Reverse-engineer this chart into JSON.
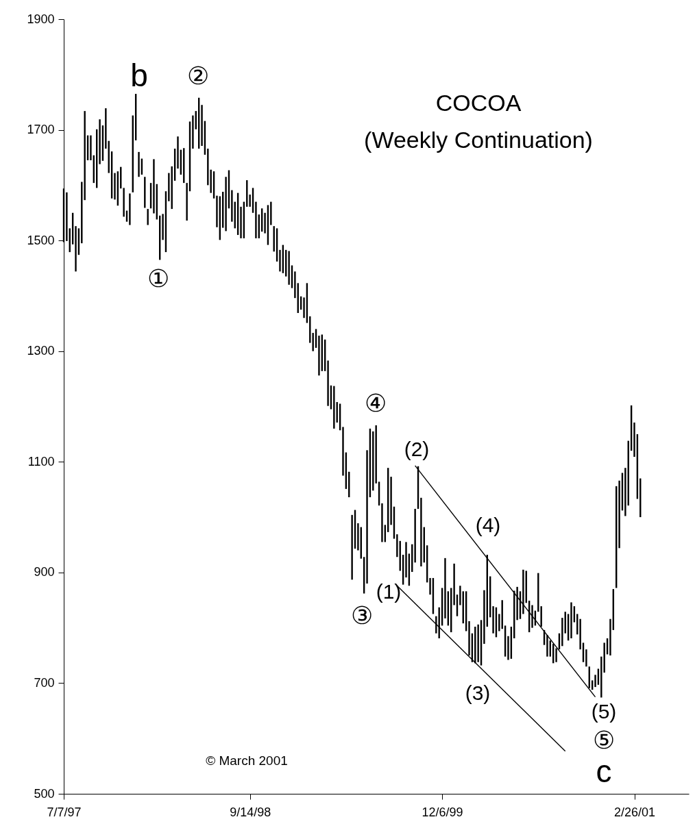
{
  "chart_data": {
    "type": "bar",
    "title": "COCOA",
    "subtitle": "(Weekly Continuation)",
    "x": [
      "1997-07-07",
      "1997-07-14",
      "1997-07-21",
      "1997-07-28",
      "1997-08-04",
      "1997-08-11",
      "1997-08-18",
      "1997-08-25",
      "1997-09-01",
      "1997-09-08",
      "1997-09-15",
      "1997-09-22",
      "1997-09-29",
      "1997-10-06",
      "1997-10-13",
      "1997-10-20",
      "1997-10-27",
      "1997-11-03",
      "1997-11-10",
      "1997-11-17",
      "1997-11-24",
      "1997-12-01",
      "1997-12-08",
      "1997-12-15",
      "1997-12-22",
      "1997-12-29",
      "1998-01-05",
      "1998-01-12",
      "1998-01-19",
      "1998-01-26",
      "1998-02-02",
      "1998-02-09",
      "1998-02-16",
      "1998-02-23",
      "1998-03-02",
      "1998-03-09",
      "1998-03-16",
      "1998-03-23",
      "1998-03-30",
      "1998-04-06",
      "1998-04-13",
      "1998-04-20",
      "1998-04-27",
      "1998-05-04",
      "1998-05-11",
      "1998-05-18",
      "1998-05-25",
      "1998-06-01",
      "1998-06-08",
      "1998-06-15",
      "1998-06-22",
      "1998-06-29",
      "1998-07-06",
      "1998-07-13",
      "1998-07-20",
      "1998-07-27",
      "1998-08-03",
      "1998-08-10",
      "1998-08-17",
      "1998-08-24",
      "1998-08-31",
      "1998-09-07",
      "1998-09-14",
      "1998-09-21",
      "1998-09-28",
      "1998-10-05",
      "1998-10-12",
      "1998-10-19",
      "1998-10-26",
      "1998-11-02",
      "1998-11-09",
      "1998-11-16",
      "1998-11-23",
      "1998-11-30",
      "1998-12-07",
      "1998-12-14",
      "1998-12-21",
      "1998-12-28",
      "1999-01-04",
      "1999-01-11",
      "1999-01-18",
      "1999-01-25",
      "1999-02-01",
      "1999-02-08",
      "1999-02-15",
      "1999-02-22",
      "1999-03-01",
      "1999-03-08",
      "1999-03-15",
      "1999-03-22",
      "1999-03-29",
      "1999-04-05",
      "1999-04-12",
      "1999-04-19",
      "1999-04-26",
      "1999-05-03",
      "1999-05-10",
      "1999-05-17",
      "1999-05-24",
      "1999-05-31",
      "1999-06-07",
      "1999-06-14",
      "1999-06-21",
      "1999-06-28",
      "1999-07-05",
      "1999-07-12",
      "1999-07-19",
      "1999-07-26",
      "1999-08-02",
      "1999-08-09",
      "1999-08-16",
      "1999-08-23",
      "1999-08-30",
      "1999-09-06",
      "1999-09-13",
      "1999-09-20",
      "1999-09-27",
      "1999-10-04",
      "1999-10-11",
      "1999-10-18",
      "1999-10-25",
      "1999-11-01",
      "1999-11-08",
      "1999-11-15",
      "1999-11-22",
      "1999-11-29",
      "1999-12-06",
      "1999-12-13",
      "1999-12-20",
      "1999-12-27",
      "2000-01-03",
      "2000-01-10",
      "2000-01-17",
      "2000-01-24",
      "2000-01-31",
      "2000-02-07",
      "2000-02-14",
      "2000-02-21",
      "2000-02-28",
      "2000-03-06",
      "2000-03-13",
      "2000-03-20",
      "2000-03-27",
      "2000-04-03",
      "2000-04-10",
      "2000-04-17",
      "2000-04-24",
      "2000-05-01",
      "2000-05-08",
      "2000-05-15",
      "2000-05-22",
      "2000-05-29",
      "2000-06-05",
      "2000-06-12",
      "2000-06-19",
      "2000-06-26",
      "2000-07-03",
      "2000-07-10",
      "2000-07-17",
      "2000-07-24",
      "2000-07-31",
      "2000-08-07",
      "2000-08-14",
      "2000-08-21",
      "2000-08-28",
      "2000-09-04",
      "2000-09-11",
      "2000-09-18",
      "2000-09-25",
      "2000-10-02",
      "2000-10-09",
      "2000-10-16",
      "2000-10-23",
      "2000-10-30",
      "2000-11-06",
      "2000-11-13",
      "2000-11-20",
      "2000-11-27",
      "2000-12-04",
      "2000-12-11",
      "2000-12-18",
      "2000-12-25",
      "2001-01-01",
      "2001-01-08",
      "2001-01-15",
      "2001-01-22",
      "2001-01-29",
      "2001-02-05",
      "2001-02-12",
      "2001-02-19",
      "2001-02-26",
      "2001-03-05",
      "2001-03-12"
    ],
    "series": [
      {
        "color": "#000000",
        "base": [
          1497,
          1499,
          1479,
          1493,
          1444,
          1474,
          1495,
          1573,
          1645,
          1645,
          1604,
          1595,
          1638,
          1644,
          1666,
          1622,
          1576,
          1574,
          1563,
          1594,
          1543,
          1534,
          1528,
          1587,
          1681,
          1615,
          1619,
          1559,
          1528,
          1558,
          1549,
          1538,
          1465,
          1501,
          1479,
          1571,
          1557,
          1608,
          1630,
          1619,
          1604,
          1536,
          1589,
          1666,
          1701,
          1666,
          1671,
          1655,
          1600,
          1586,
          1576,
          1524,
          1501,
          1523,
          1517,
          1558,
          1534,
          1522,
          1510,
          1504,
          1504,
          1561,
          1561,
          1550,
          1504,
          1504,
          1516,
          1513,
          1492,
          1528,
          1480,
          1462,
          1444,
          1441,
          1435,
          1420,
          1414,
          1396,
          1369,
          1375,
          1360,
          1351,
          1315,
          1300,
          1306,
          1256,
          1264,
          1264,
          1201,
          1195,
          1160,
          1171,
          1157,
          1075,
          1051,
          1036,
          887,
          943,
          940,
          925,
          862,
          880,
          1036,
          1048,
          1061,
          1021,
          955,
          955,
          973,
          986,
          961,
          928,
          903,
          878,
          891,
          876,
          901,
          918,
          1015,
          911,
          918,
          882,
          860,
          825,
          790,
          781,
          804,
          817,
          804,
          792,
          841,
          821,
          841,
          808,
          794,
          750,
          738,
          736,
          738,
          732,
          771,
          802,
          819,
          790,
          783,
          794,
          798,
          748,
          742,
          744,
          781,
          814,
          816,
          825,
          845,
          792,
          800,
          804,
          829,
          802,
          769,
          748,
          748,
          736,
          738,
          761,
          767,
          790,
          777,
          781,
          810,
          788,
          761,
          738,
          730,
          691,
          688,
          693,
          697,
          674,
          719,
          752,
          750,
          796,
          872,
          944,
          1012,
          1002,
          1021,
          1120,
          1109,
          1033,
          1000
        ],
        "values": [
          97,
          88,
          43,
          57,
          82,
          48,
          111,
          161,
          45,
          45,
          50,
          106,
          81,
          64,
          73,
          58,
          85,
          48,
          62,
          39,
          52,
          20,
          57,
          139,
          84,
          45,
          29,
          56,
          29,
          46,
          98,
          64,
          80,
          47,
          110,
          51,
          77,
          58,
          58,
          45,
          63,
          68,
          126,
          60,
          33,
          92,
          74,
          61,
          66,
          42,
          49,
          57,
          79,
          65,
          98,
          69,
          57,
          48,
          76,
          57,
          66,
          48,
          22,
          45,
          66,
          43,
          42,
          37,
          72,
          42,
          46,
          60,
          39,
          51,
          48,
          61,
          41,
          48,
          54,
          24,
          37,
          72,
          48,
          33,
          34,
          72,
          66,
          57,
          82,
          43,
          77,
          37,
          48,
          88,
          66,
          46,
          117,
          70,
          49,
          57,
          66,
          241,
          124,
          107,
          105,
          43,
          70,
          31,
          116,
          87,
          58,
          41,
          54,
          54,
          64,
          58,
          50,
          97,
          77,
          124,
          64,
          67,
          30,
          65,
          31,
          56,
          68,
          109,
          62,
          80,
          75,
          39,
          35,
          58,
          72,
          62,
          52,
          66,
          68,
          82,
          97,
          130,
          74,
          49,
          54,
          31,
          52,
          56,
          43,
          58,
          86,
          60,
          50,
          80,
          58,
          57,
          41,
          27,
          70,
          37,
          27,
          39,
          29,
          35,
          25,
          29,
          51,
          39,
          48,
          65,
          29,
          37,
          55,
          35,
          31,
          39,
          17,
          22,
          29,
          74,
          54,
          29,
          66,
          74,
          184,
          122,
          68,
          87,
          117,
          82,
          62,
          117,
          70
        ]
      },
      {
        "type": "line",
        "color": "#000000",
        "x": [
          "1999-10-04",
          "2000-11-27"
        ],
        "values": [
          1093,
          675
        ]
      },
      {
        "type": "line",
        "color": "#000000",
        "x": [
          "1999-08-23",
          "2000-09-18"
        ],
        "values": [
          876,
          577
        ]
      }
    ],
    "xlim": [
      "1997-07-07",
      "2001-07-03"
    ],
    "xticks": [
      {
        "value": "1997-07-07",
        "label": "7/7/97"
      },
      {
        "value": "1998-09-14",
        "label": "9/14/98"
      },
      {
        "value": "1999-12-06",
        "label": "12/6/99"
      },
      {
        "value": "2001-02-26",
        "label": "2/26/01"
      }
    ],
    "ylim": [
      500,
      1900
    ],
    "yticks": [
      500,
      700,
      900,
      1100,
      1300,
      1500,
      1700,
      1900
    ],
    "annotations": [
      "b",
      "②",
      "①",
      "③",
      "(1)",
      "④",
      "(2)",
      "(4)",
      "(3)",
      "(5)",
      "⑤",
      "c",
      "© March 2001"
    ]
  }
}
